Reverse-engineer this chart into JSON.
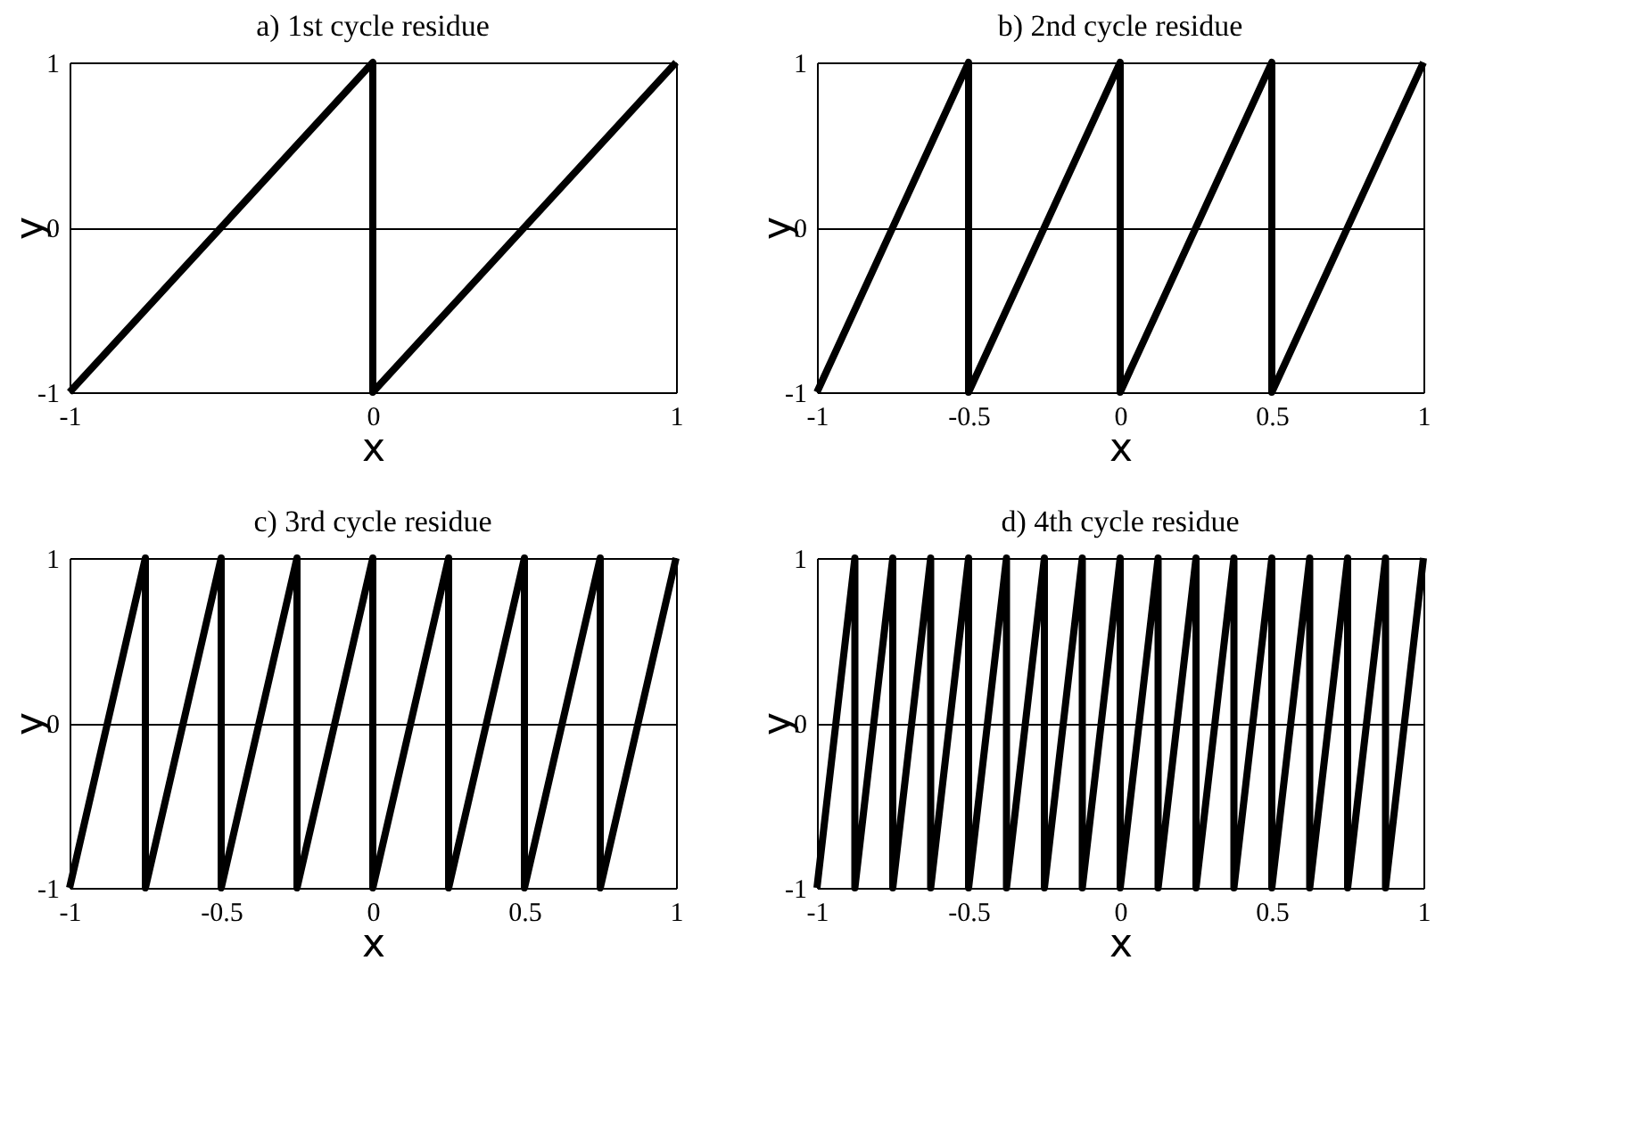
{
  "chart_data": [
    {
      "type": "line",
      "title": "a) 1st cycle residue",
      "xlabel": "x",
      "ylabel": "y",
      "color": "#000000",
      "grid": true,
      "xlim": [
        -1,
        1
      ],
      "ylim": [
        -1,
        1
      ],
      "xticks": [
        -1,
        0,
        1
      ],
      "yticks": [
        -1,
        0,
        1
      ],
      "x": [
        -1,
        0,
        0,
        1
      ],
      "values": [
        -1,
        1,
        -1,
        1
      ]
    },
    {
      "type": "line",
      "title": "b) 2nd cycle residue",
      "xlabel": "x",
      "ylabel": "y",
      "color": "#000000",
      "grid": true,
      "xlim": [
        -1,
        1
      ],
      "ylim": [
        -1,
        1
      ],
      "xticks": [
        -1,
        -0.5,
        0,
        0.5,
        1
      ],
      "yticks": [
        -1,
        0,
        1
      ],
      "x": [
        -1,
        -0.5,
        -0.5,
        0,
        0,
        0.5,
        0.5,
        1
      ],
      "values": [
        -1,
        1,
        -1,
        1,
        -1,
        1,
        -1,
        1
      ]
    },
    {
      "type": "line",
      "title": "c) 3rd cycle residue",
      "xlabel": "x",
      "ylabel": "y",
      "color": "#000000",
      "grid": true,
      "xlim": [
        -1,
        1
      ],
      "ylim": [
        -1,
        1
      ],
      "xticks": [
        -1,
        -0.5,
        0,
        0.5,
        1
      ],
      "yticks": [
        -1,
        0,
        1
      ],
      "x": [
        -1,
        -0.75,
        -0.75,
        -0.5,
        -0.5,
        -0.25,
        -0.25,
        0,
        0,
        0.25,
        0.25,
        0.5,
        0.5,
        0.75,
        0.75,
        1
      ],
      "values": [
        -1,
        1,
        -1,
        1,
        -1,
        1,
        -1,
        1,
        -1,
        1,
        -1,
        1,
        -1,
        1,
        -1,
        1
      ]
    },
    {
      "type": "line",
      "title": "d) 4th cycle residue",
      "xlabel": "x",
      "ylabel": "y",
      "color": "#000000",
      "grid": true,
      "xlim": [
        -1,
        1
      ],
      "ylim": [
        -1,
        1
      ],
      "xticks": [
        -1,
        -0.5,
        0,
        0.5,
        1
      ],
      "yticks": [
        -1,
        0,
        1
      ],
      "x": [
        -1,
        -0.875,
        -0.875,
        -0.75,
        -0.75,
        -0.625,
        -0.625,
        -0.5,
        -0.5,
        -0.375,
        -0.375,
        -0.25,
        -0.25,
        -0.125,
        -0.125,
        0,
        0,
        0.125,
        0.125,
        0.25,
        0.25,
        0.375,
        0.375,
        0.5,
        0.5,
        0.625,
        0.625,
        0.75,
        0.75,
        0.875,
        0.875,
        1
      ],
      "values": [
        -1,
        1,
        -1,
        1,
        -1,
        1,
        -1,
        1,
        -1,
        1,
        -1,
        1,
        -1,
        1,
        -1,
        1,
        -1,
        1,
        -1,
        1,
        -1,
        1,
        -1,
        1,
        -1,
        1,
        -1,
        1,
        -1,
        1,
        -1,
        1
      ]
    }
  ]
}
